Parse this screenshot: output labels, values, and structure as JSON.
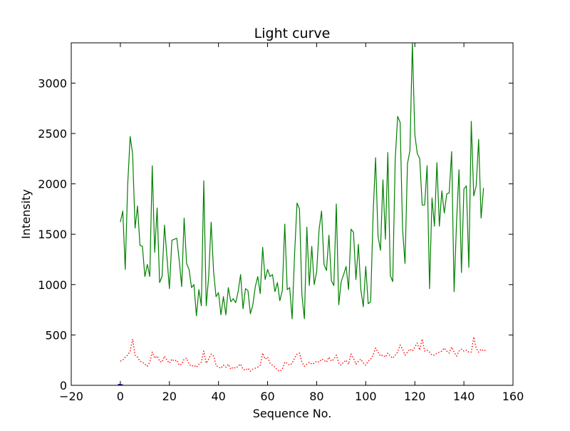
{
  "chart_data": {
    "type": "line",
    "title": "Light curve",
    "xlabel": "Sequence No.",
    "ylabel": "Intensity",
    "xlim": [
      -20,
      160
    ],
    "ylim": [
      0,
      3400
    ],
    "xticks": [
      -20,
      0,
      20,
      40,
      60,
      80,
      100,
      120,
      140,
      160
    ],
    "yticks": [
      0,
      500,
      1000,
      1500,
      2000,
      2500,
      3000
    ],
    "grid": false,
    "legend": "none",
    "series": [
      {
        "color": "#008000",
        "style": "solid",
        "x_start": 0,
        "values": [
          1620,
          1730,
          1150,
          1990,
          2470,
          2300,
          1560,
          1780,
          1390,
          1380,
          1080,
          1200,
          1080,
          2180,
          1320,
          1760,
          1020,
          1080,
          1590,
          1270,
          960,
          1440,
          1450,
          1460,
          1240,
          980,
          1660,
          1210,
          1150,
          970,
          1000,
          690,
          950,
          790,
          2030,
          790,
          1080,
          1620,
          1130,
          880,
          920,
          700,
          880,
          700,
          970,
          830,
          860,
          820,
          930,
          1100,
          760,
          960,
          940,
          710,
          800,
          980,
          1080,
          910,
          1370,
          1050,
          1150,
          1080,
          1100,
          930,
          1020,
          840,
          940,
          1600,
          950,
          970,
          660,
          1300,
          1810,
          1750,
          890,
          660,
          1570,
          990,
          1380,
          1000,
          1130,
          1550,
          1730,
          1200,
          1140,
          1490,
          1040,
          990,
          1800,
          800,
          1030,
          1100,
          1180,
          950,
          1550,
          1520,
          1050,
          1400,
          950,
          780,
          1180,
          810,
          830,
          1700,
          2260,
          1480,
          1340,
          2040,
          1450,
          2310,
          1090,
          1030,
          2240,
          2670,
          2610,
          1550,
          1210,
          2200,
          2330,
          3400,
          2490,
          2300,
          2250,
          1790,
          1790,
          2180,
          960,
          1860,
          1580,
          2210,
          1580,
          1930,
          1710,
          1900,
          1910,
          2320,
          930,
          1620,
          2140,
          1120,
          1950,
          1980,
          1170,
          2620,
          1880,
          1980,
          2440,
          1660,
          1960
        ]
      },
      {
        "color": "#ff0000",
        "style": "dotted",
        "x_start": 0,
        "values": [
          240,
          250,
          280,
          300,
          340,
          460,
          300,
          280,
          240,
          230,
          210,
          190,
          230,
          330,
          270,
          290,
          240,
          230,
          290,
          250,
          220,
          260,
          240,
          250,
          200,
          210,
          260,
          270,
          210,
          190,
          200,
          180,
          210,
          230,
          340,
          220,
          260,
          310,
          290,
          200,
          180,
          170,
          200,
          180,
          210,
          160,
          180,
          170,
          190,
          210,
          160,
          150,
          170,
          140,
          160,
          170,
          180,
          200,
          320,
          260,
          280,
          220,
          200,
          180,
          150,
          140,
          160,
          230,
          220,
          200,
          220,
          270,
          310,
          320,
          230,
          190,
          210,
          230,
          210,
          220,
          240,
          230,
          260,
          250,
          230,
          280,
          240,
          260,
          300,
          220,
          200,
          230,
          250,
          210,
          310,
          270,
          210,
          240,
          260,
          220,
          200,
          240,
          260,
          300,
          370,
          330,
          290,
          300,
          280,
          320,
          290,
          270,
          300,
          330,
          400,
          360,
          300,
          330,
          360,
          340,
          380,
          420,
          350,
          460,
          340,
          350,
          330,
          300,
          300,
          320,
          330,
          340,
          370,
          340,
          320,
          380,
          330,
          290,
          340,
          360,
          340,
          350,
          330,
          330,
          480,
          370,
          330,
          360,
          340,
          350
        ]
      },
      {
        "color": "#0000ff",
        "style": "solid",
        "x_start": -1,
        "values": [
          3,
          3
        ]
      },
      {
        "color": "#000000",
        "style": "solid",
        "x_start": 0,
        "values": [
          0,
          0
        ]
      }
    ]
  }
}
